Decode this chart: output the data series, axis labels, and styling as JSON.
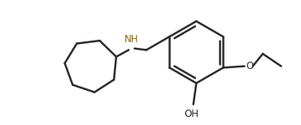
{
  "background_color": "#ffffff",
  "line_color": "#2d2d2d",
  "nh_color": "#8B6914",
  "line_width": 1.8,
  "figsize": [
    3.7,
    1.54
  ],
  "dpi": 100,
  "xlim": [
    0.0,
    10.0
  ],
  "ylim": [
    0.0,
    4.2
  ]
}
